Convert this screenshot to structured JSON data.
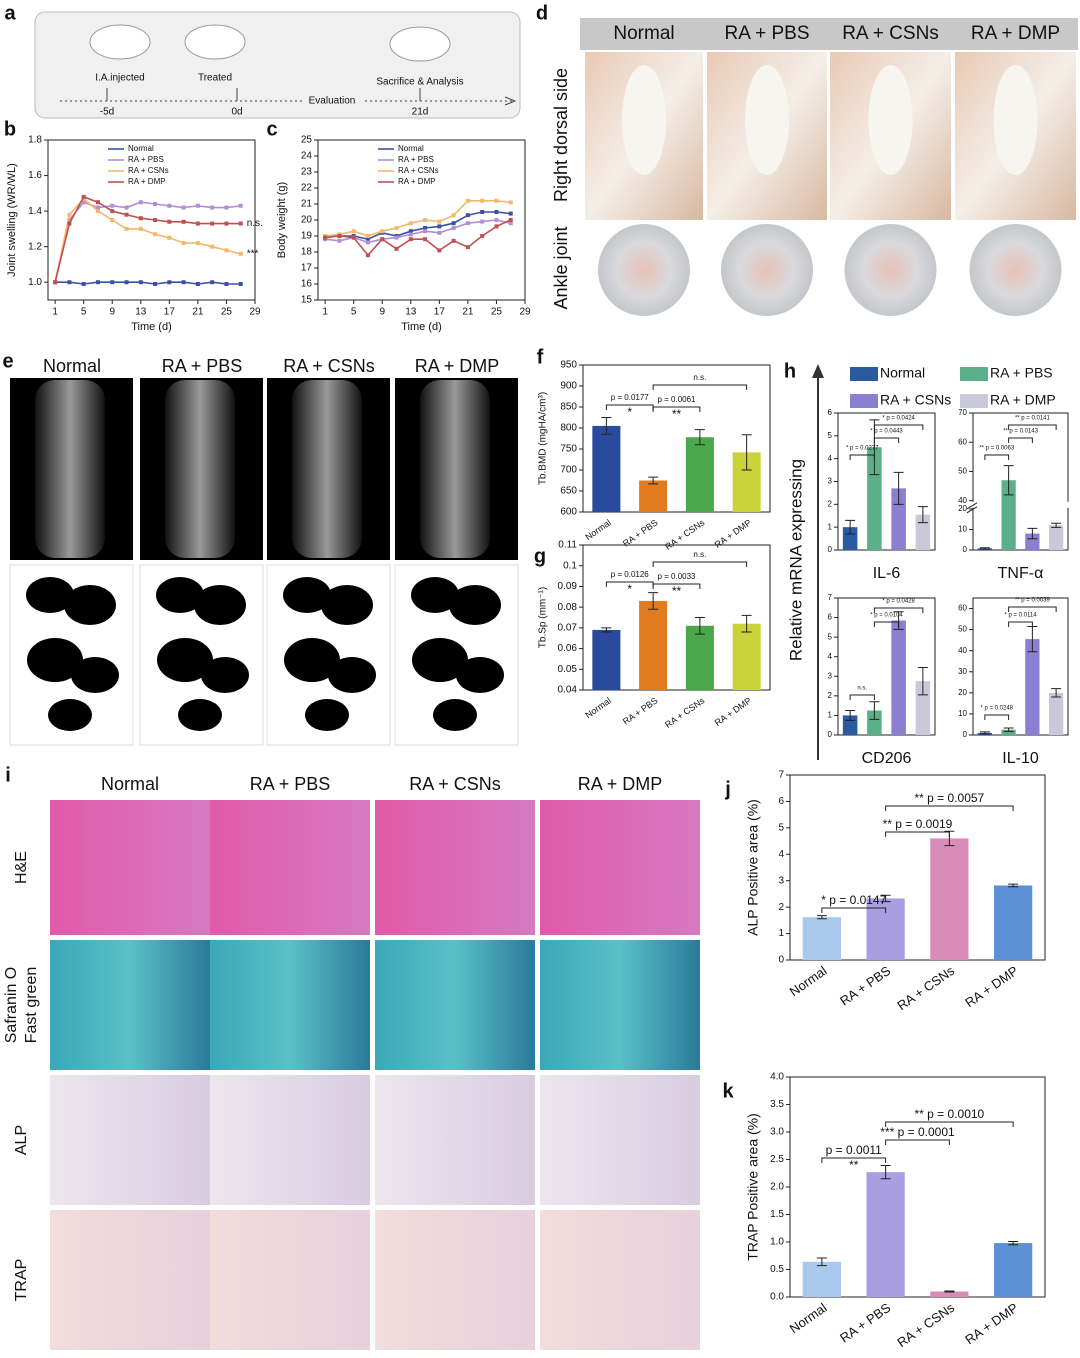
{
  "panel_labels": [
    "a",
    "b",
    "c",
    "d",
    "e",
    "f",
    "g",
    "h",
    "i",
    "j",
    "k"
  ],
  "timeline": {
    "steps": [
      "I.A.injected",
      "Treated",
      "Sacrifice & Analysis"
    ],
    "days": [
      "-5d",
      "0d",
      "21d"
    ],
    "label": "Evaluation"
  },
  "photos": {
    "columns": [
      "Normal",
      "RA + PBS",
      "RA + CSNs",
      "RA + DMP"
    ],
    "rows": [
      "Right dorsal side",
      "Ankle joint"
    ]
  },
  "micro_ct": {
    "columns": [
      "Normal",
      "RA + PBS",
      "RA + CSNs",
      "RA + DMP"
    ]
  },
  "histology": {
    "columns": [
      "Normal",
      "RA + PBS",
      "RA + CSNs",
      "RA + DMP"
    ],
    "rows": [
      [
        "H&E"
      ],
      [
        "Safranin O",
        "Fast green"
      ],
      [
        "ALP"
      ],
      [
        "TRAP"
      ]
    ]
  },
  "mrna": {
    "legend": [
      "Normal",
      "RA + PBS",
      "RA + CSNs",
      "RA + DMP"
    ],
    "colors": [
      "#2a5aa0",
      "#5bb08a",
      "#8a7fd0",
      "#c9c9d9"
    ],
    "ylabel": "Relative mRNA expressing"
  },
  "chart_data": [
    {
      "type": "line",
      "ylabel": "Joint swelling (WR/WL)",
      "xlabel": "Time (d)",
      "x": [
        1,
        3,
        5,
        7,
        9,
        11,
        13,
        15,
        17,
        19,
        21,
        23,
        25,
        27
      ],
      "xlim": [
        0,
        29
      ],
      "xticks": [
        1,
        5,
        9,
        13,
        17,
        21,
        25,
        29
      ],
      "ylim": [
        0.9,
        1.8
      ],
      "yticks": [
        {
          "value": 1,
          "label": "1.0"
        },
        1.2,
        1.4,
        1.6,
        1.8
      ],
      "annotations": [
        "n.s.",
        "***"
      ],
      "series": [
        {
          "name": "Normal",
          "color": "#3a52a4",
          "values": [
            1,
            1,
            0.99,
            1,
            1,
            1,
            1,
            0.99,
            1,
            1,
            0.99,
            1,
            0.99,
            0.99
          ]
        },
        {
          "name": "RA + PBS",
          "color": "#b08fd6",
          "values": [
            1,
            1.35,
            1.45,
            1.42,
            1.43,
            1.42,
            1.45,
            1.44,
            1.43,
            1.42,
            1.43,
            1.42,
            1.42,
            1.43
          ]
        },
        {
          "name": "RA + CSNs",
          "color": "#f5b76a",
          "values": [
            1,
            1.38,
            1.47,
            1.4,
            1.35,
            1.3,
            1.3,
            1.27,
            1.25,
            1.22,
            1.22,
            1.2,
            1.18,
            1.16
          ]
        },
        {
          "name": "RA + DMP",
          "color": "#c05050",
          "values": [
            1,
            1.33,
            1.48,
            1.45,
            1.4,
            1.38,
            1.36,
            1.35,
            1.34,
            1.34,
            1.33,
            1.33,
            1.33,
            1.33
          ]
        }
      ]
    },
    {
      "type": "line",
      "ylabel": "Body weight (g)",
      "xlabel": "Time (d)",
      "x": [
        1,
        3,
        5,
        7,
        9,
        11,
        13,
        15,
        17,
        19,
        21,
        23,
        25,
        27
      ],
      "xlim": [
        0,
        29
      ],
      "xticks": [
        1,
        5,
        9,
        13,
        17,
        21,
        25,
        29
      ],
      "ylim": [
        15,
        25
      ],
      "yticks": [
        15,
        16,
        17,
        18,
        19,
        20,
        21,
        22,
        23,
        24,
        25
      ],
      "series": [
        {
          "name": "Normal",
          "color": "#3a52a4",
          "values": [
            19,
            19,
            19,
            18.8,
            19.2,
            19,
            19.3,
            19.5,
            19.6,
            19.8,
            20.3,
            20.5,
            20.5,
            20.4
          ]
        },
        {
          "name": "RA + PBS",
          "color": "#b08fd6",
          "values": [
            18.8,
            18.7,
            18.9,
            18.6,
            18.8,
            18.9,
            19.1,
            19.3,
            19.2,
            19.5,
            19.8,
            19.9,
            20,
            19.8
          ]
        },
        {
          "name": "RA + CSNs",
          "color": "#f5b76a",
          "values": [
            19,
            19.1,
            19.3,
            19,
            19.3,
            19.5,
            19.8,
            20,
            19.9,
            20.3,
            21.2,
            21.2,
            21.2,
            21.1
          ]
        },
        {
          "name": "RA + DMP",
          "color": "#c05050",
          "values": [
            18.9,
            19,
            18.9,
            17.8,
            18.8,
            18.2,
            18.8,
            18.8,
            18.1,
            18.7,
            18.3,
            19,
            19.6,
            20
          ]
        }
      ]
    },
    {
      "type": "bar",
      "ylabel": "Tb.BMD (mgHA/cm³)",
      "categories": [
        "Normal",
        "RA + PBS",
        "RA + CSNs",
        "RA + DMP"
      ],
      "values": [
        805,
        675,
        778,
        742
      ],
      "errors": [
        20,
        8,
        18,
        42
      ],
      "colors": [
        "#2a4a9e",
        "#e07b20",
        "#4aa84a",
        "#c8d43a"
      ],
      "ylim": [
        600,
        950
      ],
      "yticks": [
        600,
        650,
        700,
        750,
        800,
        850,
        900,
        950
      ],
      "annotations": [
        "p = 0.0177",
        "*",
        "p = 0.0061",
        "**",
        "n.s."
      ]
    },
    {
      "type": "bar",
      "ylabel": "Tb.Sp (mm⁻¹)",
      "categories": [
        "Normal",
        "RA + PBS",
        "RA + CSNs",
        "RA + DMP"
      ],
      "values": [
        0.069,
        0.083,
        0.071,
        0.072
      ],
      "errors": [
        0.001,
        0.004,
        0.004,
        0.004
      ],
      "colors": [
        "#2a4a9e",
        "#e07b20",
        "#4aa84a",
        "#c8d43a"
      ],
      "ylim": [
        0.04,
        0.11
      ],
      "yticks": [
        0.04,
        0.05,
        0.06,
        0.07,
        0.08,
        0.09,
        0.1,
        0.11
      ],
      "annotations": [
        "p = 0.0126",
        "*",
        "p = 0.0033",
        "**",
        "n.s."
      ]
    },
    {
      "type": "bar",
      "title": "IL-6",
      "values": [
        1,
        4.5,
        2.7,
        1.55
      ],
      "errors": [
        0.3,
        1.2,
        0.7,
        0.35
      ],
      "ylim": [
        0,
        6
      ],
      "yticks": [
        0,
        1,
        2,
        3,
        4,
        5,
        6
      ],
      "annotations": [
        "* p = 0.0277",
        "* p = 0.0443",
        "* p = 0.0424"
      ]
    },
    {
      "type": "bar",
      "title": "TNF-α",
      "values": [
        0.8,
        47,
        8,
        12
      ],
      "errors": [
        0.3,
        5,
        2.5,
        1
      ],
      "ylim": [
        0,
        70
      ],
      "ybreak": [
        20,
        40
      ],
      "yticks": [
        0,
        10,
        20,
        40,
        50,
        60,
        70
      ],
      "annotations": [
        "** p = 0.0063",
        "** p = 0.0143",
        "** p = 0.0141"
      ]
    },
    {
      "type": "bar",
      "title": "CD206",
      "values": [
        1,
        1.25,
        5.85,
        2.75
      ],
      "errors": [
        0.25,
        0.45,
        0.45,
        0.7
      ],
      "ylim": [
        0,
        7
      ],
      "yticks": [
        0,
        1,
        2,
        3,
        4,
        5,
        6,
        7
      ],
      "annotations": [
        "n.s.",
        "* p = 0.0104",
        "* p = 0.0428"
      ]
    },
    {
      "type": "bar",
      "title": "IL-10",
      "values": [
        1,
        2.5,
        45.5,
        20
      ],
      "errors": [
        0.5,
        0.8,
        6,
        2
      ],
      "ylim": [
        0,
        65
      ],
      "yticks": [
        0,
        10,
        20,
        30,
        40,
        50,
        60
      ],
      "annotations": [
        "* p = 0.0248",
        "* p = 0.0114",
        "** p = 0.0039"
      ]
    },
    {
      "type": "bar",
      "ylabel": "ALP Positive area (%)",
      "categories": [
        "Normal",
        "RA + PBS",
        "RA + CSNs",
        "RA + DMP"
      ],
      "values": [
        1.62,
        2.33,
        4.6,
        2.82
      ],
      "errors": [
        0.06,
        0.12,
        0.27,
        0.05
      ],
      "colors": [
        "#a8c8ec",
        "#a99ee0",
        "#d98cb8",
        "#5b8fd6"
      ],
      "ylim": [
        0,
        7
      ],
      "yticks": [
        0,
        1,
        2,
        3,
        4,
        5,
        6,
        7
      ],
      "annotations": [
        "* p = 0.0147",
        "** p = 0.0019",
        "** p = 0.0057"
      ]
    },
    {
      "type": "bar",
      "ylabel": "TRAP Positive area (%)",
      "categories": [
        "Normal",
        "RA + PBS",
        "RA + CSNs",
        "RA + DMP"
      ],
      "values": [
        0.64,
        2.27,
        0.1,
        0.98
      ],
      "errors": [
        0.07,
        0.12,
        0.01,
        0.03
      ],
      "colors": [
        "#a8c8ec",
        "#a99ee0",
        "#d98cb8",
        "#5b8fd6"
      ],
      "ylim": [
        0,
        4
      ],
      "yticks": [
        {
          "value": 0,
          "label": "0.0"
        },
        0.5,
        {
          "value": 1,
          "label": "1.0"
        },
        1.5,
        {
          "value": 2,
          "label": "2.0"
        },
        2.5,
        {
          "value": 3,
          "label": "3.0"
        },
        3.5,
        {
          "value": 4,
          "label": "4.0"
        }
      ],
      "annotations": [
        "p = 0.0011",
        "**",
        "*** p = 0.0001",
        "** p = 0.0010"
      ]
    }
  ]
}
